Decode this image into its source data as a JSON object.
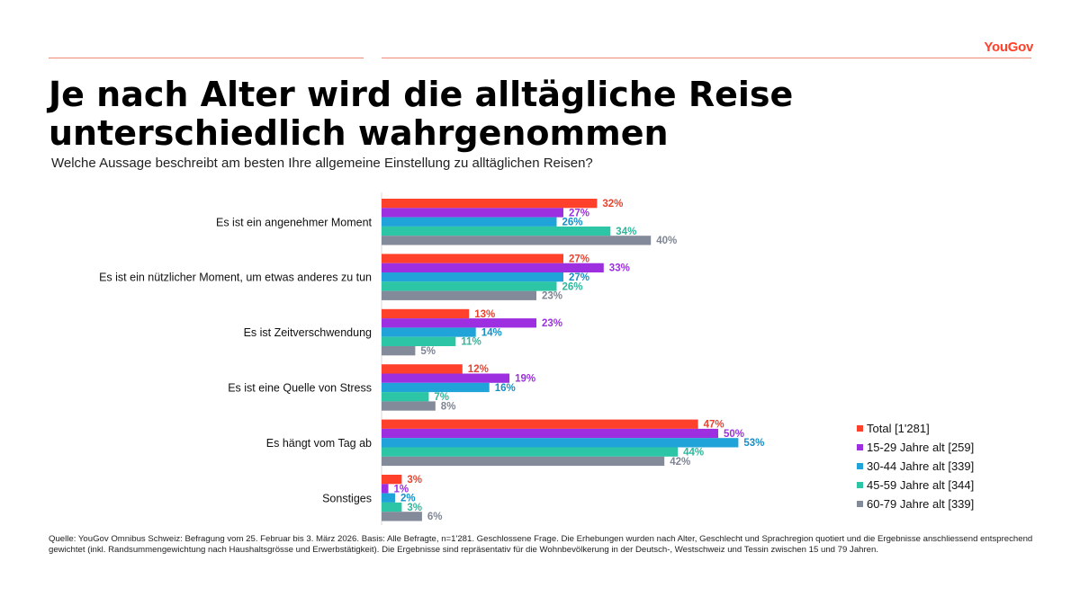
{
  "brand": "YouGov",
  "header": {
    "title_line1": "Je nach Alter wird die alltägliche Reise",
    "title_line2": "unterschiedlich wahrgenommen",
    "subtitle": "Welche Aussage beschreibt am besten Ihre allgemeine Einstellung zu alltäglichen Reisen?"
  },
  "source": "Quelle: YouGov Omnibus Schweiz: Befragung vom 25. Februar bis 3. März 2026. Basis: Alle Befragte, n=1'281. Geschlossene Frage. Die Erhebungen wurden nach Alter, Geschlecht und Sprachregion quotiert und die Ergebnisse anschliessend entsprechend gewichtet (inkl. Randsummengewichtung nach Haushaltsgrösse und Erwerbstätigkeit). Die Ergebnisse sind repräsentativ für die Wohnbevölkerung in der Deutsch-, Westschweiz und Tessin zwischen 15 und 79 Jahren.",
  "chart_data": {
    "type": "bar",
    "orientation": "horizontal",
    "value_suffix": "%",
    "xlim": [
      0,
      60
    ],
    "legend_position": "bottom-right",
    "categories": [
      "Es ist ein angenehmer Moment",
      "Es ist ein nützlicher Moment, um etwas anderes zu tun",
      "Es ist Zeitverschwendung",
      "Es ist eine Quelle von Stress",
      "Es hängt vom Tag ab",
      "Sonstiges"
    ],
    "series": [
      {
        "name": "Total [1'281]",
        "color": "#ff412c",
        "label_color": "#e8432f",
        "values": [
          32,
          27,
          13,
          12,
          47,
          3
        ]
      },
      {
        "name": "15-29 Jahre alt [259]",
        "color": "#9d2fe0",
        "label_color": "#9d2fe0",
        "values": [
          27,
          33,
          23,
          19,
          50,
          1
        ]
      },
      {
        "name": "30-44 Jahre alt [339]",
        "color": "#1fa3d8",
        "label_color": "#1590c6",
        "values": [
          26,
          27,
          14,
          16,
          53,
          2
        ]
      },
      {
        "name": "45-59 Jahre alt [344]",
        "color": "#2cc6a6",
        "label_color": "#2cb89c",
        "values": [
          34,
          26,
          11,
          7,
          44,
          3
        ]
      },
      {
        "name": "60-79 Jahre alt [339]",
        "color": "#838a99",
        "label_color": "#7f8594",
        "values": [
          40,
          23,
          5,
          8,
          42,
          6
        ]
      }
    ]
  }
}
